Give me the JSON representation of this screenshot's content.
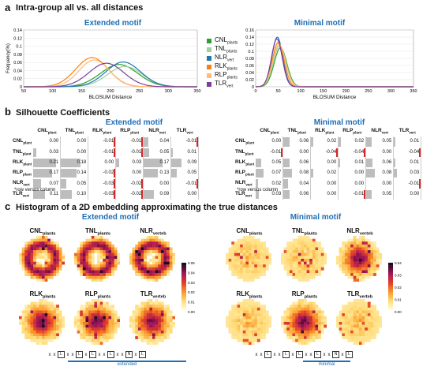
{
  "panel_a": {
    "letter": "a",
    "title": "Intra-group all vs. all distances",
    "left_title": "Extended motif",
    "right_title": "Minimal motif",
    "legend": [
      {
        "base": "CNL",
        "sub": "plants",
        "color": "#2ca02c"
      },
      {
        "base": "TNL",
        "sub": "plants",
        "color": "#9fd19f"
      },
      {
        "base": "NLR",
        "sub": "vert",
        "color": "#1f77b4"
      },
      {
        "base": "RLK",
        "sub": "plants",
        "color": "#ff7f0e"
      },
      {
        "base": "RLP",
        "sub": "plants",
        "color": "#ffbb78"
      },
      {
        "base": "TLR",
        "sub": "vert",
        "color": "#7b3f9e"
      }
    ]
  },
  "chart_data": [
    {
      "type": "line",
      "title": "Extended motif",
      "xlabel": "BLOSUM Distance",
      "ylabel": "Frequency(%)",
      "xlim": [
        50,
        350
      ],
      "ylim": [
        0,
        0.14
      ],
      "xticks": [
        50,
        100,
        150,
        200,
        250,
        300,
        350
      ],
      "yticks": [
        0,
        0.02,
        0.04,
        0.06,
        0.08,
        0.1,
        0.12,
        0.14
      ],
      "series": [
        {
          "name": "CNLplants",
          "color": "#2ca02c",
          "mu": 215,
          "sigma": 32,
          "peak": 0.055
        },
        {
          "name": "TNLplants",
          "color": "#9fd19f",
          "mu": 225,
          "sigma": 30,
          "peak": 0.05
        },
        {
          "name": "NLRvert",
          "color": "#1f77b4",
          "mu": 222,
          "sigma": 30,
          "peak": 0.061
        },
        {
          "name": "RLKplants",
          "color": "#ff7f0e",
          "mu": 168,
          "sigma": 28,
          "peak": 0.072
        },
        {
          "name": "RLPplants",
          "color": "#ffbb78",
          "mu": 172,
          "sigma": 26,
          "peak": 0.066
        },
        {
          "name": "TLRvert",
          "color": "#7b3f9e",
          "mu": 193,
          "sigma": 30,
          "peak": 0.058
        }
      ]
    },
    {
      "type": "line",
      "title": "Minimal motif",
      "xlabel": "BLOSUM Distance",
      "ylabel": "",
      "xlim": [
        0,
        350
      ],
      "ylim": [
        0,
        0.16
      ],
      "xticks": [
        0,
        50,
        100,
        150,
        200,
        250,
        300,
        350
      ],
      "yticks": [
        0,
        0.02,
        0.04,
        0.06,
        0.08,
        0.1,
        0.12,
        0.14,
        0.16
      ],
      "series": [
        {
          "name": "CNLplants",
          "color": "#2ca02c",
          "mu": 55,
          "sigma": 14,
          "peak": 0.11
        },
        {
          "name": "TNLplants",
          "color": "#9fd19f",
          "mu": 53,
          "sigma": 14,
          "peak": 0.115
        },
        {
          "name": "NLRvert",
          "color": "#1f77b4",
          "mu": 48,
          "sigma": 12,
          "peak": 0.14
        },
        {
          "name": "RLKplants",
          "color": "#ff7f0e",
          "mu": 50,
          "sigma": 13,
          "peak": 0.125
        },
        {
          "name": "RLPplants",
          "color": "#ffbb78",
          "mu": 52,
          "sigma": 14,
          "peak": 0.12
        },
        {
          "name": "TLRvert",
          "color": "#7b3f9e",
          "mu": 47,
          "sigma": 12,
          "peak": 0.135
        }
      ]
    }
  ],
  "panel_b": {
    "letter": "b",
    "title": "Silhouette Coefficients",
    "note": "*row versus column",
    "columns": [
      {
        "base": "CNL",
        "sub": "plant"
      },
      {
        "base": "TNL",
        "sub": "plant"
      },
      {
        "base": "RLK",
        "sub": "plant"
      },
      {
        "base": "RLP",
        "sub": "plant"
      },
      {
        "base": "NLR",
        "sub": "vert"
      },
      {
        "base": "TLR",
        "sub": "vert"
      }
    ],
    "rows": [
      {
        "base": "CNL",
        "sub": "plant"
      },
      {
        "base": "TNL",
        "sub": "plant"
      },
      {
        "base": "RLK",
        "sub": "plant"
      },
      {
        "base": "RLP",
        "sub": "plant"
      },
      {
        "base": "NLR",
        "sub": "vert"
      },
      {
        "base": "TLR",
        "sub": "vert"
      }
    ],
    "extended": {
      "title": "Extended motif",
      "values": [
        [
          "0.00",
          "0.00",
          "-0.01",
          "-0.01",
          "0.04",
          "-0.01"
        ],
        [
          "0.03",
          "0.00",
          "-0.01",
          "-0.01",
          "0.05",
          "0.01"
        ],
        [
          "0.21",
          "0.18",
          "0.00",
          "0.03",
          "0.17",
          "0.09"
        ],
        [
          "0.17",
          "0.14",
          "-0.02",
          "0.00",
          "0.13",
          "0.05"
        ],
        [
          "0.07",
          "0.05",
          "-0.03",
          "-0.02",
          "0.00",
          "-0.01"
        ],
        [
          "0.11",
          "0.10",
          "-0.03",
          "-0.02",
          "0.09",
          "0.00"
        ]
      ]
    },
    "minimal": {
      "title": "Minimal motif",
      "values": [
        [
          "0.00",
          "0.06",
          "0.02",
          "0.02",
          "0.05",
          "0.01"
        ],
        [
          "-0.01",
          "0.00",
          "-0.04",
          "-0.04",
          "0.00",
          "-0.04"
        ],
        [
          "0.05",
          "0.06",
          "0.00",
          "0.01",
          "0.06",
          "0.01"
        ],
        [
          "0.07",
          "0.08",
          "0.02",
          "0.00",
          "0.08",
          "0.03"
        ],
        [
          "0.02",
          "0.04",
          "0.00",
          "0.00",
          "0.00",
          "-0.01"
        ],
        [
          "0.03",
          "0.06",
          "0.00",
          "-0.01",
          "0.05",
          "0.00"
        ]
      ]
    }
  },
  "panel_c": {
    "letter": "c",
    "title": "Histogram of a 2D embedding approximating the true distances",
    "extended": {
      "title": "Extended motif",
      "labels": [
        {
          "base": "CNL",
          "sub": "plants"
        },
        {
          "base": "TNL",
          "sub": "plants"
        },
        {
          "base": "NLR",
          "sub": "verteb"
        },
        {
          "base": "RLK",
          "sub": "plants"
        },
        {
          "base": "RLP",
          "sub": "plants"
        },
        {
          "base": "TLR",
          "sub": "verteb"
        }
      ],
      "colorbar_ticks": [
        "0.05",
        "0.04",
        "0.03",
        "0.02",
        "0.01",
        "0.00"
      ],
      "motif_label": "extended"
    },
    "minimal": {
      "title": "Minimal motif",
      "labels": [
        {
          "base": "CNL",
          "sub": "plants"
        },
        {
          "base": "TNL",
          "sub": "plants"
        },
        {
          "base": "NLR",
          "sub": "verteb"
        },
        {
          "base": "RLK",
          "sub": "plants"
        },
        {
          "base": "RLP",
          "sub": "plants"
        },
        {
          "base": "TLR",
          "sub": "verteb"
        }
      ],
      "colorbar_ticks": [
        "0.04",
        "0.03",
        "0.02",
        "0.01",
        "0.00"
      ],
      "motif_label": "minimal"
    },
    "sequence": [
      "x",
      "x",
      "L",
      "x",
      "x",
      "L",
      "x",
      "L",
      "x",
      "x",
      "L",
      "x",
      "x",
      "N",
      "x",
      "L"
    ]
  },
  "colors": {
    "accent": "#1f6fb5",
    "negative": "#d62728",
    "bar": "#bdbdbd"
  }
}
